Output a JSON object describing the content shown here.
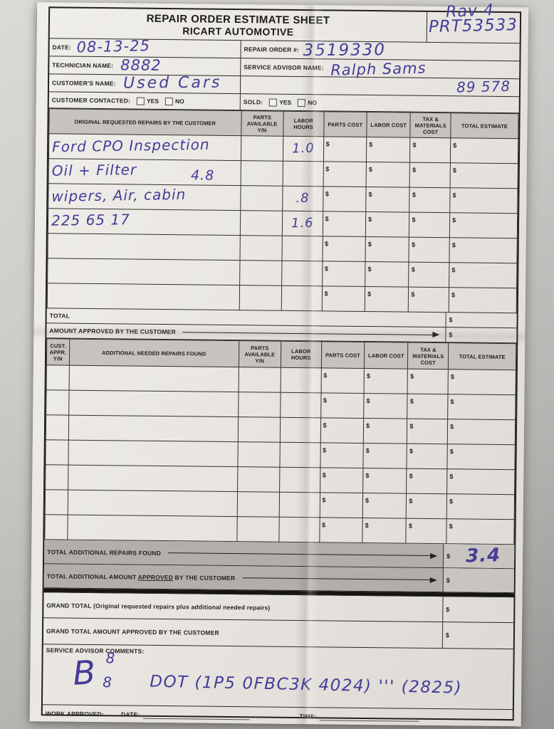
{
  "title": {
    "line1": "REPAIR ORDER ESTIMATE SHEET",
    "line2": "RICART AUTOMOTIVE"
  },
  "annotations": {
    "vehicle": "Rav 4",
    "stock_number": "PRT53533",
    "mileage": "89 578"
  },
  "fields": {
    "date_label": "DATE:",
    "date_value": "08-13-25",
    "repair_order_label": "REPAIR ORDER #:",
    "repair_order_value": "3519330",
    "technician_label": "TECHNICIAN NAME:",
    "technician_value": "8882",
    "service_advisor_label": "SERVICE ADVISOR NAME:",
    "service_advisor_value": "Ralph Sams",
    "customer_label": "CUSTOMER'S NAME:",
    "customer_value": "Used Cars",
    "customer_contacted_label": "CUSTOMER CONTACTED:",
    "sold_label": "SOLD:",
    "yes": "YES",
    "no": "NO"
  },
  "currency": "$",
  "original_table": {
    "headers": [
      "ORIGINAL REQUESTED REPAIRS BY THE CUSTOMER",
      "PARTS AVAILABLE Y/N",
      "LABOR HOURS",
      "PARTS COST",
      "LABOR COST",
      "TAX & MATERIALS COST",
      "TOTAL ESTIMATE"
    ],
    "rows": [
      {
        "description": "Ford CPO Inspection",
        "note": "",
        "labor_hours": "1.0"
      },
      {
        "description": "Oil + Filter",
        "note": "4.8",
        "labor_hours": ""
      },
      {
        "description": "wipers, Air, cabin",
        "note": "",
        "labor_hours": ".8"
      },
      {
        "description": "225 65 17",
        "note": "",
        "labor_hours": "1.6"
      },
      {
        "description": "",
        "note": "",
        "labor_hours": ""
      },
      {
        "description": "",
        "note": "",
        "labor_hours": ""
      },
      {
        "description": "",
        "note": "",
        "labor_hours": ""
      }
    ],
    "total_label": "TOTAL",
    "amount_approved_label": "AMOUNT APPROVED BY THE CUSTOMER"
  },
  "additional_table": {
    "headers": [
      "CUST. APPR. Y/N",
      "ADDITIONAL NEEDED REPAIRS FOUND",
      "PARTS AVAILABLE Y/N",
      "LABOR HOURS",
      "PARTS COST",
      "LABOR COST",
      "TAX & MATERIALS COST",
      "TOTAL ESTIMATE"
    ],
    "empty_row_count": 7,
    "total_found_label": "TOTAL ADDITIONAL REPAIRS FOUND",
    "total_found_value": "3.4",
    "total_approved_prefix": "TOTAL ADDITIONAL AMOUNT ",
    "total_approved_underlined": "APPROVED",
    "total_approved_suffix": " BY THE CUSTOMER"
  },
  "summary": {
    "grand_total_label": "GRAND TOTAL (Original requested repairs plus additional needed repairs)",
    "grand_total_approved_label": "GRAND TOTAL AMOUNT APPROVED BY THE CUSTOMER",
    "comments_label": "SERVICE ADVISOR COMMENTS:",
    "comment_letter": "B",
    "comment_sup": "8",
    "comment_sub": "8",
    "comment_text": "DOT (1P5 0FBC3K 4024) ''' (2825)"
  },
  "footer": {
    "work_approved_label": "WORK APPROVED:",
    "date_label": "DATE:",
    "time_label": "TIME:"
  },
  "colors": {
    "ink": "#463b99",
    "paper": "#e9e6e1",
    "header_shade": "#c6c3be",
    "totals_shade": "#b2afaa"
  }
}
